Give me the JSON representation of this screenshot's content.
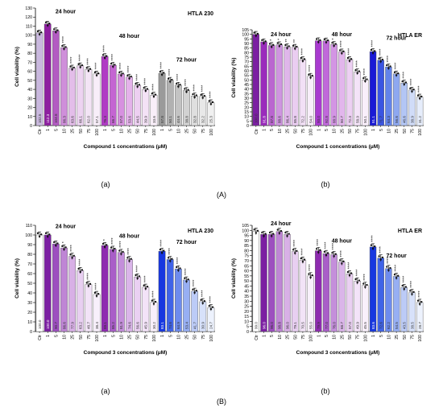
{
  "section_labels": [
    "(A)",
    "(B)"
  ],
  "star_symbol": "*",
  "chart_data": [
    {
      "type": "bar",
      "title": "HTLA 230",
      "panel_label": "(a)",
      "section": "A",
      "xlabel": "Compound 1 concentrations (μM)",
      "ylabel": "Cell viability (%)",
      "ylim": [
        0,
        130
      ],
      "yticks": [
        0,
        10,
        20,
        30,
        40,
        50,
        60,
        70,
        80,
        90,
        100,
        110,
        120,
        130
      ],
      "grid": false,
      "categories": [
        "Ctr",
        "1",
        "5",
        "10",
        "25",
        "50",
        "75",
        "100",
        "1",
        "5",
        "10",
        "25",
        "50",
        "75",
        "100",
        "1",
        "5",
        "10",
        "25",
        "50",
        "75",
        "100"
      ],
      "values": [
        102.5,
        112.3,
        104.8,
        86.3,
        63.6,
        66.1,
        62.0,
        57.1,
        76.3,
        66.7,
        57.0,
        53.6,
        44.5,
        39.9,
        33.6,
        57.8,
        50.1,
        44.6,
        38.8,
        32.8,
        32.2,
        25.3
      ],
      "value_labels": [
        "102.5",
        "112.3",
        "104.8",
        "86.3",
        "63.6",
        "66.1",
        "62.0",
        "57.1",
        "76.3",
        "66.7",
        "57.0",
        "53.6",
        "44.5",
        "39.9",
        "33.6",
        "57.8",
        "50.1",
        "44.6",
        "38.8",
        "32.8",
        "32.2",
        "25.3"
      ],
      "stars": [
        "",
        "",
        "",
        "****",
        "****",
        "****",
        "****",
        "****",
        "****",
        "****",
        "****",
        "****",
        "****",
        "****",
        "****",
        "****",
        "****",
        "****",
        "****",
        "****",
        "****",
        "****"
      ],
      "colors": [
        "#c9b8de",
        "#8e1fa0",
        "#b35bc2",
        "#cf8fda",
        "#e3bde9",
        "#edd3f1",
        "#f3e4f5",
        "#f8eef9",
        "#b03bc4",
        "#c465d2",
        "#d791e0",
        "#e4b2ea",
        "#edcff1",
        "#f4e2f6",
        "#f9eff9",
        "#9a9a9a",
        "#b1b1b1",
        "#c3c3c3",
        "#d2d2d2",
        "#dfdfdf",
        "#e8e8e8",
        "#f0f0f0"
      ],
      "group_labels": [
        {
          "text": "24 hour",
          "value": 124
        },
        {
          "text": "48 hour",
          "value": 97
        },
        {
          "text": "72 hour",
          "value": 71
        }
      ]
    },
    {
      "type": "bar",
      "title": "HTLA ER",
      "panel_label": "(b)",
      "section": "A",
      "xlabel": "Compound 1 concentrations (μM)",
      "ylabel": "Cell viability (%)",
      "ylim": [
        0,
        105
      ],
      "yticks": [
        0,
        5,
        10,
        15,
        20,
        25,
        30,
        35,
        40,
        45,
        50,
        55,
        60,
        65,
        70,
        75,
        80,
        85,
        90,
        95,
        100,
        105
      ],
      "grid": false,
      "categories": [
        "Ctr",
        "1",
        "5",
        "10",
        "25",
        "50",
        "75",
        "100",
        "1",
        "5",
        "10",
        "25",
        "50",
        "75",
        "100",
        "1",
        "5",
        "10",
        "25",
        "50",
        "75",
        "100"
      ],
      "values": [
        100.0,
        91.8,
        87.8,
        88.6,
        86.4,
        85.8,
        72.2,
        54.0,
        93.0,
        92.8,
        88.9,
        80.7,
        72.3,
        58.9,
        50.1,
        81.1,
        71.7,
        64.3,
        56.6,
        46.6,
        38.9,
        31.2
      ],
      "value_labels": [
        "100.0",
        "91.8",
        "87.8",
        "88.6",
        "86.4",
        "85.8",
        "72.2",
        "54.0",
        "93.0",
        "92.8",
        "88.9",
        "80.7",
        "72.3",
        "58.9",
        "50.1",
        "81.1",
        "71.7",
        "64.3",
        "56.6",
        "46.6",
        "38.9",
        "31.2"
      ],
      "stars": [
        "",
        "",
        "*",
        "*",
        "**",
        "**",
        "****",
        "****",
        "",
        "",
        "*",
        "****",
        "****",
        "****",
        "****",
        "****",
        "****",
        "****",
        "****",
        "****",
        "****",
        "****"
      ],
      "colors": [
        "#7b1fa2",
        "#9a2bbc",
        "#ba66d0",
        "#cf95e0",
        "#dfb6ea",
        "#eacdf1",
        "#f2e0f6",
        "#f8eefa",
        "#a93ad0",
        "#c069da",
        "#d395e4",
        "#e2b6ec",
        "#edd0f3",
        "#f4e3f8",
        "#f9effb",
        "#1a1ad6",
        "#3a55e3",
        "#6383ea",
        "#8ea8f0",
        "#b3c6f5",
        "#d0dcf8",
        "#e6edfb"
      ],
      "group_labels": [
        {
          "text": "24 hour",
          "value": 98
        },
        {
          "text": "48 hour",
          "value": 98
        },
        {
          "text": "72 hour",
          "value": 94
        }
      ]
    },
    {
      "type": "bar",
      "title": "HTLA 230",
      "panel_label": "(a)",
      "section": "B",
      "xlabel": "Compound 3 concentrations (μM)",
      "ylabel": "Cell viability (%)",
      "ylim": [
        0,
        110
      ],
      "yticks": [
        0,
        10,
        20,
        30,
        40,
        50,
        60,
        70,
        80,
        90,
        100,
        110
      ],
      "grid": false,
      "categories": [
        "Ctr",
        "1",
        "5",
        "10",
        "25",
        "50",
        "75",
        "100",
        "1",
        "5",
        "10",
        "25",
        "50",
        "75",
        "100",
        "1",
        "5",
        "10",
        "25",
        "50",
        "75",
        "100"
      ],
      "values": [
        100.0,
        100.0,
        90.7,
        86.6,
        77.9,
        63.2,
        48.7,
        38.4,
        89.1,
        85.2,
        81.9,
        74.6,
        56.6,
        45.9,
        30.2,
        83.1,
        74.6,
        64.9,
        53.4,
        41.7,
        30.9,
        24.7
      ],
      "value_labels": [
        "100.0",
        "100.0",
        "90.7",
        "86.6",
        "77.9",
        "63.2",
        "48.7",
        "38.4",
        "89.1",
        "85.2",
        "81.9",
        "74.6",
        "56.6",
        "45.9",
        "30.2",
        "83.1",
        "74.6",
        "64.9",
        "53.4",
        "41.7",
        "30.9",
        "24.7"
      ],
      "stars": [
        "",
        "",
        "",
        "*",
        "****",
        "****",
        "****",
        "****",
        "*",
        "****",
        "****",
        "****",
        "****",
        "****",
        "****",
        "****",
        "****",
        "****",
        "****",
        "****",
        "****",
        "****"
      ],
      "colors": [
        "#ffffff",
        "#7b1fa2",
        "#9d4fbf",
        "#bf86d5",
        "#d8b0e6",
        "#e8cff1",
        "#f2e3f7",
        "#f8f0fb",
        "#8e2bb0",
        "#a95ec8",
        "#c48fdb",
        "#dab5e9",
        "#ead0f2",
        "#f3e3f8",
        "#f9f0fb",
        "#1737e0",
        "#3f63e8",
        "#6d8bee",
        "#97aff3",
        "#bccbf7",
        "#d7e1fa",
        "#edf2fd"
      ],
      "group_labels": [
        {
          "text": "24 hour",
          "value": 107
        },
        {
          "text": "48 hour",
          "value": 97
        },
        {
          "text": "72 hour",
          "value": 91
        }
      ]
    },
    {
      "type": "bar",
      "title": "HTLA ER",
      "panel_label": "(b)",
      "section": "B",
      "xlabel": "Compound 3 concentrations (μM)",
      "ylabel": "Cell viability (%)",
      "ylim": [
        0,
        105
      ],
      "yticks": [
        0,
        5,
        10,
        15,
        20,
        25,
        30,
        35,
        40,
        45,
        50,
        55,
        60,
        65,
        70,
        75,
        80,
        85,
        90,
        95,
        100,
        105
      ],
      "grid": false,
      "categories": [
        "Ctr",
        "1",
        "5",
        "10",
        "25",
        "50",
        "75",
        "100",
        "1",
        "5",
        "10",
        "25",
        "50",
        "75",
        "100",
        "1",
        "5",
        "10",
        "25",
        "50",
        "75",
        "100"
      ],
      "values": [
        99.0,
        96.0,
        96.0,
        98.8,
        96.0,
        79.1,
        70.5,
        55.0,
        79.9,
        77.0,
        76.0,
        68.7,
        57.0,
        49.9,
        45.5,
        83.6,
        72.6,
        62.2,
        54.5,
        43.5,
        38.5,
        28.7
      ],
      "value_labels": [
        "99.0",
        "96.0",
        "96.0",
        "98.8",
        "96.0",
        "79.1",
        "70.5",
        "55.0",
        "79.9",
        "77.0",
        "76.0",
        "68.7",
        "57.0",
        "49.9",
        "45.5",
        "83.6",
        "72.6",
        "62.2",
        "54.5",
        "43.5",
        "38.5",
        "28.7"
      ],
      "stars": [
        "",
        "",
        "",
        "",
        "",
        "****",
        "****",
        "****",
        "****",
        "****",
        "****",
        "****",
        "****",
        "****",
        "****",
        "****",
        "****",
        "****",
        "****",
        "****",
        "****",
        "****"
      ],
      "colors": [
        "#ffffff",
        "#7b1fa2",
        "#9d4fbf",
        "#bf86d5",
        "#d8b0e6",
        "#e8cff1",
        "#f2e3f7",
        "#f8f0fb",
        "#8e2bb0",
        "#a95ec8",
        "#c48fdb",
        "#dab5e9",
        "#ead0f2",
        "#f3e3f8",
        "#f9f0fb",
        "#1737e0",
        "#3f63e8",
        "#6d8bee",
        "#97aff3",
        "#bccbf7",
        "#d7e1fa",
        "#edf2fd"
      ],
      "group_labels": [
        {
          "text": "24 hour",
          "value": 105
        },
        {
          "text": "48 hour",
          "value": 88
        },
        {
          "text": "72 hour",
          "value": 73
        }
      ]
    }
  ]
}
